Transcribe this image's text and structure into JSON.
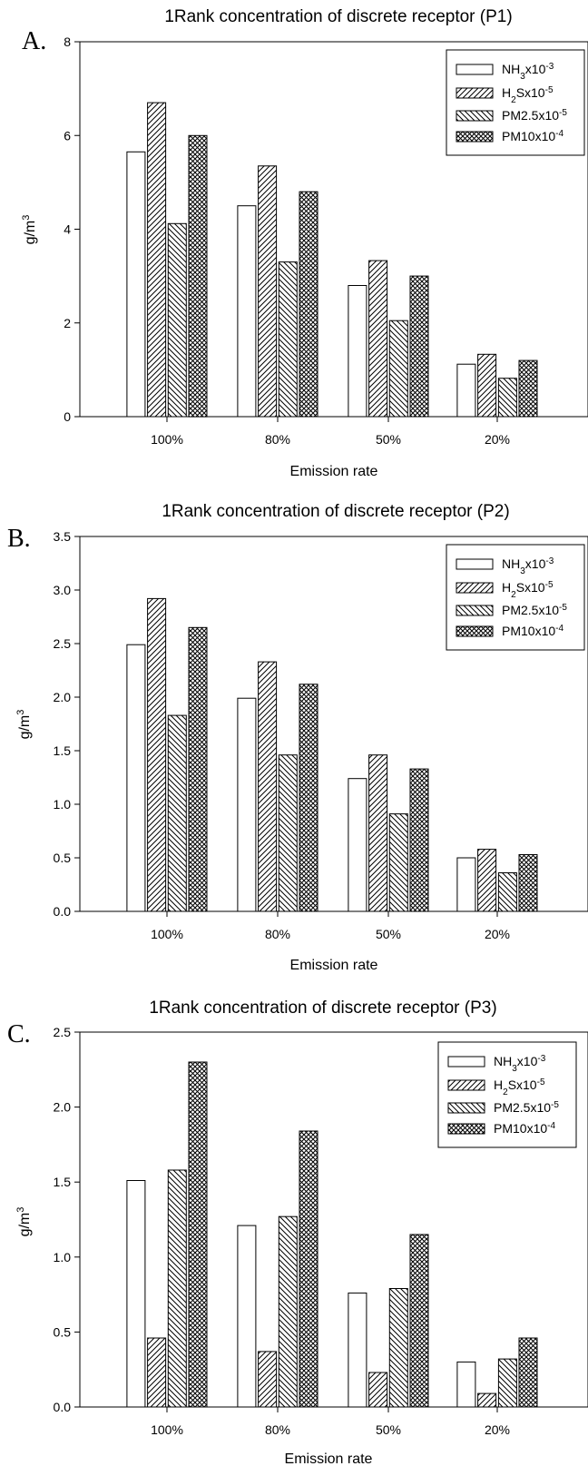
{
  "chart_data": [
    {
      "type": "bar",
      "panel_label": "A.",
      "title": "1Rank concentration of discrete receptor (P1)",
      "xlabel": "Emission rate",
      "ylabel": "g/m3",
      "ylim": [
        0,
        8
      ],
      "yticks": [
        "0",
        "2",
        "4",
        "6",
        "8"
      ],
      "categories": [
        "100%",
        "80%",
        "50%",
        "20%"
      ],
      "series": [
        {
          "name": "NH3x10-3",
          "pattern": "none",
          "values": [
            5.65,
            4.5,
            2.8,
            1.12
          ]
        },
        {
          "name": "H2Sx10-5",
          "pattern": "diag-up",
          "values": [
            6.7,
            5.35,
            3.33,
            1.33
          ]
        },
        {
          "name": "PM2.5x10-5",
          "pattern": "diag-down",
          "values": [
            4.12,
            3.3,
            2.05,
            0.82
          ]
        },
        {
          "name": "PM10x10-4",
          "pattern": "cross",
          "values": [
            6.0,
            4.8,
            3.0,
            1.2
          ]
        }
      ],
      "legend": "top-right"
    },
    {
      "type": "bar",
      "panel_label": "B.",
      "title": "1Rank concentration of discrete receptor (P2)",
      "xlabel": "Emission rate",
      "ylabel": "g/m3",
      "ylim": [
        0,
        3.5
      ],
      "yticks": [
        "0.0",
        "0.5",
        "1.0",
        "1.5",
        "2.0",
        "2.5",
        "3.0",
        "3.5"
      ],
      "categories": [
        "100%",
        "80%",
        "50%",
        "20%"
      ],
      "series": [
        {
          "name": "NH3x10-3",
          "pattern": "none",
          "values": [
            2.49,
            1.99,
            1.24,
            0.5
          ]
        },
        {
          "name": "H2Sx10-5",
          "pattern": "diag-up",
          "values": [
            2.92,
            2.33,
            1.46,
            0.58
          ]
        },
        {
          "name": "PM2.5x10-5",
          "pattern": "diag-down",
          "values": [
            1.83,
            1.46,
            0.91,
            0.36
          ]
        },
        {
          "name": "PM10x10-4",
          "pattern": "cross",
          "values": [
            2.65,
            2.12,
            1.33,
            0.53
          ]
        }
      ],
      "legend": "top-right"
    },
    {
      "type": "bar",
      "panel_label": "C.",
      "title": "1Rank concentration of discrete receptor (P3)",
      "xlabel": "Emission rate",
      "ylabel": "g/m3",
      "ylim": [
        0,
        2.5
      ],
      "yticks": [
        "0.0",
        "0.5",
        "1.0",
        "1.5",
        "2.0",
        "2.5"
      ],
      "categories": [
        "100%",
        "80%",
        "50%",
        "20%"
      ],
      "series": [
        {
          "name": "NH3x10-3",
          "pattern": "none",
          "values": [
            1.51,
            1.21,
            0.76,
            0.3
          ]
        },
        {
          "name": "H2Sx10-5",
          "pattern": "diag-up",
          "values": [
            0.46,
            0.37,
            0.23,
            0.09
          ]
        },
        {
          "name": "PM2.5x10-5",
          "pattern": "diag-down",
          "values": [
            1.58,
            1.27,
            0.79,
            0.32
          ]
        },
        {
          "name": "PM10x10-4",
          "pattern": "cross",
          "values": [
            2.3,
            1.84,
            1.15,
            0.46
          ]
        }
      ],
      "legend": "top-right"
    }
  ]
}
